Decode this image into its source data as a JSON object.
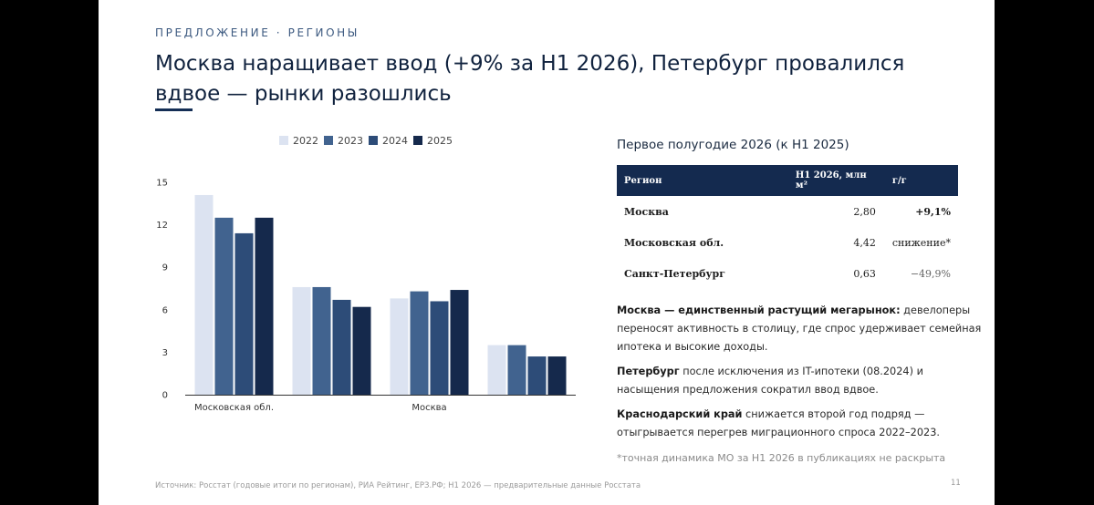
{
  "kicker": "ПРЕДЛОЖЕНИЕ · РЕГИОНЫ",
  "title": "Москва наращивает ввод (+9% за H1 2026), Петербург провалился вдвое — рынки разошлись",
  "colors": {
    "2022": "#dce3f1",
    "2023": "#41638f",
    "2024": "#2d4c78",
    "2025": "#15294c"
  },
  "chart_data": {
    "type": "bar",
    "categories": [
      "Московская обл.",
      "",
      "Москва",
      ""
    ],
    "series": [
      {
        "name": "2022",
        "values": [
          14.1,
          7.6,
          6.8,
          3.5
        ]
      },
      {
        "name": "2023",
        "values": [
          12.5,
          7.6,
          7.3,
          3.5
        ]
      },
      {
        "name": "2024",
        "values": [
          11.4,
          6.7,
          6.6,
          2.7
        ]
      },
      {
        "name": "2025",
        "values": [
          12.5,
          6.2,
          7.4,
          2.7
        ]
      }
    ],
    "yticks": [
      "0",
      "3",
      "6",
      "9",
      "12",
      "15"
    ],
    "ylim": [
      0,
      15
    ],
    "legend": "top-center",
    "grid": false
  },
  "table": {
    "title": "Первое полугодие 2026 (к H1 2025)",
    "headers": [
      "Регион",
      "H1 2026, млн м²",
      "г/г"
    ],
    "rows": [
      {
        "region": "Москва",
        "value": "2,80",
        "change": "+9,1%"
      },
      {
        "region": "Московская обл.",
        "value": "4,42",
        "change": "снижение*"
      },
      {
        "region": "Санкт-Петербург",
        "value": "0,63",
        "change": "−49,9%"
      }
    ]
  },
  "notes": [
    {
      "bold": "Москва — единственный растущий мегарынок:",
      "text": " девелоперы переносят активность в столицу, где спрос удерживает семейная ипотека и высокие доходы."
    },
    {
      "bold": "Петербург",
      "text": " после исключения из IT-ипотеки (08.2024) и насыщения предложения сократил ввод вдвое."
    },
    {
      "bold": "Краснодарский край",
      "text": " снижается второй год подряд — отыгрывается перегрев миграционного спроса 2022–2023."
    }
  ],
  "footnote": "*точная динамика МО за H1 2026 в публикациях не раскрыта",
  "source": "Источник: Росстат (годовые итоги по регионам), РИА Рейтинг, ЕРЗ.РФ; H1 2026 — предварительные данные Росстата",
  "page_number": "11"
}
